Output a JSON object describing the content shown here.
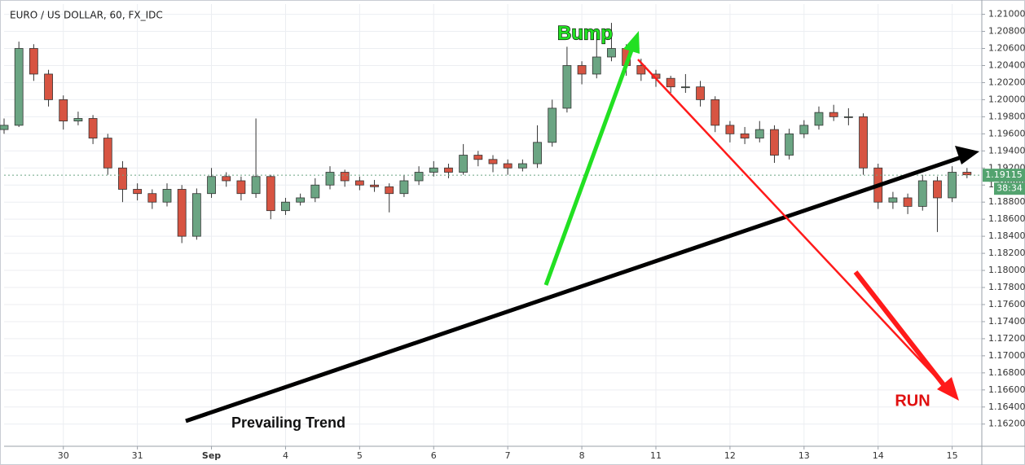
{
  "chart_data": {
    "type": "candlestick",
    "title": "EURO / US DOLLAR, 60, FX_IDC",
    "up_color": "#6ba583",
    "down_color": "#d75442",
    "grid": true,
    "xlim": [
      0,
      132
    ],
    "ylim": [
      1.1594,
      1.2112
    ],
    "xticks": [
      {
        "value": 8,
        "label": "30"
      },
      {
        "value": 18,
        "label": "31"
      },
      {
        "value": 28,
        "label": "Sep"
      },
      {
        "value": 38,
        "label": "4"
      },
      {
        "value": 48,
        "label": "5"
      },
      {
        "value": 58,
        "label": "6"
      },
      {
        "value": 68,
        "label": "7"
      },
      {
        "value": 78,
        "label": "8"
      },
      {
        "value": 88,
        "label": "11"
      },
      {
        "value": 98,
        "label": "12"
      },
      {
        "value": 108,
        "label": "13"
      },
      {
        "value": 118,
        "label": "14"
      },
      {
        "value": 128,
        "label": "15"
      }
    ],
    "yticks": [
      {
        "value": 1.162,
        "label": "1.16200"
      },
      {
        "value": 1.164,
        "label": "1.16400"
      },
      {
        "value": 1.166,
        "label": "1.16600"
      },
      {
        "value": 1.168,
        "label": "1.16800"
      },
      {
        "value": 1.17,
        "label": "1.17000"
      },
      {
        "value": 1.172,
        "label": "1.17200"
      },
      {
        "value": 1.174,
        "label": "1.17400"
      },
      {
        "value": 1.176,
        "label": "1.17600"
      },
      {
        "value": 1.178,
        "label": "1.17800"
      },
      {
        "value": 1.18,
        "label": "1.18000"
      },
      {
        "value": 1.182,
        "label": "1.18200"
      },
      {
        "value": 1.184,
        "label": "1.18400"
      },
      {
        "value": 1.186,
        "label": "1.18600"
      },
      {
        "value": 1.188,
        "label": "1.18800"
      },
      {
        "value": 1.19,
        "label": "1.19000"
      },
      {
        "value": 1.192,
        "label": "1.19200"
      },
      {
        "value": 1.194,
        "label": "1.19400"
      },
      {
        "value": 1.196,
        "label": "1.19600"
      },
      {
        "value": 1.198,
        "label": "1.19800"
      },
      {
        "value": 1.2,
        "label": "1.20000"
      },
      {
        "value": 1.202,
        "label": "1.20200"
      },
      {
        "value": 1.204,
        "label": "1.20400"
      },
      {
        "value": 1.206,
        "label": "1.20600"
      },
      {
        "value": 1.208,
        "label": "1.20800"
      },
      {
        "value": 1.21,
        "label": "1.21000"
      }
    ],
    "x": [
      0,
      2,
      4,
      6,
      8,
      10,
      12,
      14,
      16,
      18,
      20,
      22,
      24,
      26,
      28,
      30,
      32,
      34,
      36,
      38,
      40,
      42,
      44,
      46,
      48,
      50,
      52,
      54,
      56,
      58,
      60,
      62,
      64,
      66,
      68,
      70,
      72,
      74,
      76,
      78,
      80,
      82,
      84,
      86,
      88,
      90,
      92,
      94,
      96,
      98,
      100,
      102,
      104,
      106,
      108,
      110,
      112,
      114,
      116,
      118,
      120,
      122,
      124,
      126,
      128,
      130
    ],
    "open": [
      1.1965,
      1.197,
      1.206,
      1.203,
      1.2,
      1.1975,
      1.1978,
      1.1955,
      1.192,
      1.1895,
      1.189,
      1.188,
      1.1895,
      1.184,
      1.189,
      1.191,
      1.1905,
      1.189,
      1.191,
      1.187,
      1.188,
      1.1885,
      1.19,
      1.1915,
      1.1905,
      1.19,
      1.1898,
      1.189,
      1.1905,
      1.1915,
      1.192,
      1.1915,
      1.1935,
      1.193,
      1.1925,
      1.192,
      1.1925,
      1.195,
      1.199,
      1.204,
      1.203,
      1.205,
      1.206,
      1.204,
      1.203,
      1.2025,
      1.2015,
      1.2015,
      1.2,
      1.197,
      1.196,
      1.1955,
      1.1965,
      1.1935,
      1.196,
      1.197,
      1.1985,
      1.198,
      1.198,
      1.192,
      1.188,
      1.1885,
      1.1875,
      1.1905,
      1.1885,
      1.1915
    ],
    "high": [
      1.1978,
      1.2068,
      1.2065,
      1.2035,
      1.2005,
      1.1986,
      1.1982,
      1.196,
      1.1928,
      1.1902,
      1.1895,
      1.1902,
      1.19,
      1.1896,
      1.192,
      1.1915,
      1.191,
      1.1978,
      1.1912,
      1.1885,
      1.189,
      1.1908,
      1.1922,
      1.1918,
      1.191,
      1.1906,
      1.1902,
      1.1912,
      1.1922,
      1.1928,
      1.1925,
      1.1948,
      1.194,
      1.1935,
      1.193,
      1.193,
      1.197,
      1.2,
      1.2062,
      1.2045,
      1.2078,
      1.209,
      1.2065,
      1.2048,
      1.2035,
      1.2028,
      1.203,
      1.2022,
      1.2004,
      1.1975,
      1.1968,
      1.1975,
      1.197,
      1.1966,
      1.1976,
      1.1992,
      1.1994,
      1.199,
      1.1984,
      1.1925,
      1.1892,
      1.189,
      1.1912,
      1.191,
      1.1922,
      1.192
    ],
    "low": [
      1.196,
      1.1968,
      1.2022,
      1.1992,
      1.1965,
      1.197,
      1.1948,
      1.1912,
      1.188,
      1.1882,
      1.1872,
      1.1875,
      1.1832,
      1.1836,
      1.1885,
      1.1898,
      1.1882,
      1.1885,
      1.186,
      1.1865,
      1.1876,
      1.188,
      1.1895,
      1.1898,
      1.1894,
      1.1892,
      1.1868,
      1.1886,
      1.19,
      1.191,
      1.1908,
      1.1912,
      1.1922,
      1.1915,
      1.1912,
      1.1916,
      1.192,
      1.1945,
      1.1985,
      1.2018,
      1.2025,
      1.2045,
      1.2028,
      1.2022,
      1.2015,
      1.2008,
      1.2008,
      1.1992,
      1.1962,
      1.195,
      1.1948,
      1.195,
      1.1926,
      1.193,
      1.1955,
      1.1965,
      1.1975,
      1.197,
      1.1912,
      1.1872,
      1.1872,
      1.1866,
      1.187,
      1.1845,
      1.188,
      1.1908
    ],
    "close": [
      1.197,
      1.206,
      1.203,
      1.2,
      1.1975,
      1.1978,
      1.1955,
      1.192,
      1.1895,
      1.189,
      1.188,
      1.1895,
      1.184,
      1.189,
      1.191,
      1.1905,
      1.189,
      1.191,
      1.187,
      1.188,
      1.1885,
      1.19,
      1.1915,
      1.1905,
      1.19,
      1.1898,
      1.189,
      1.1905,
      1.1915,
      1.192,
      1.1915,
      1.1935,
      1.193,
      1.1925,
      1.192,
      1.1925,
      1.195,
      1.199,
      1.204,
      1.203,
      1.205,
      1.206,
      1.204,
      1.203,
      1.2025,
      1.2015,
      1.2015,
      1.2,
      1.197,
      1.196,
      1.1955,
      1.1965,
      1.1935,
      1.196,
      1.197,
      1.1985,
      1.198,
      1.198,
      1.192,
      1.188,
      1.1885,
      1.1875,
      1.1905,
      1.1885,
      1.1915,
      1.1912
    ],
    "last_price": {
      "value": 1.19115,
      "label": "1.19115"
    },
    "countdown": "38:34",
    "annotations": {
      "bump": "Bump",
      "run": "RUN",
      "trend": "Prevailing Trend"
    }
  }
}
